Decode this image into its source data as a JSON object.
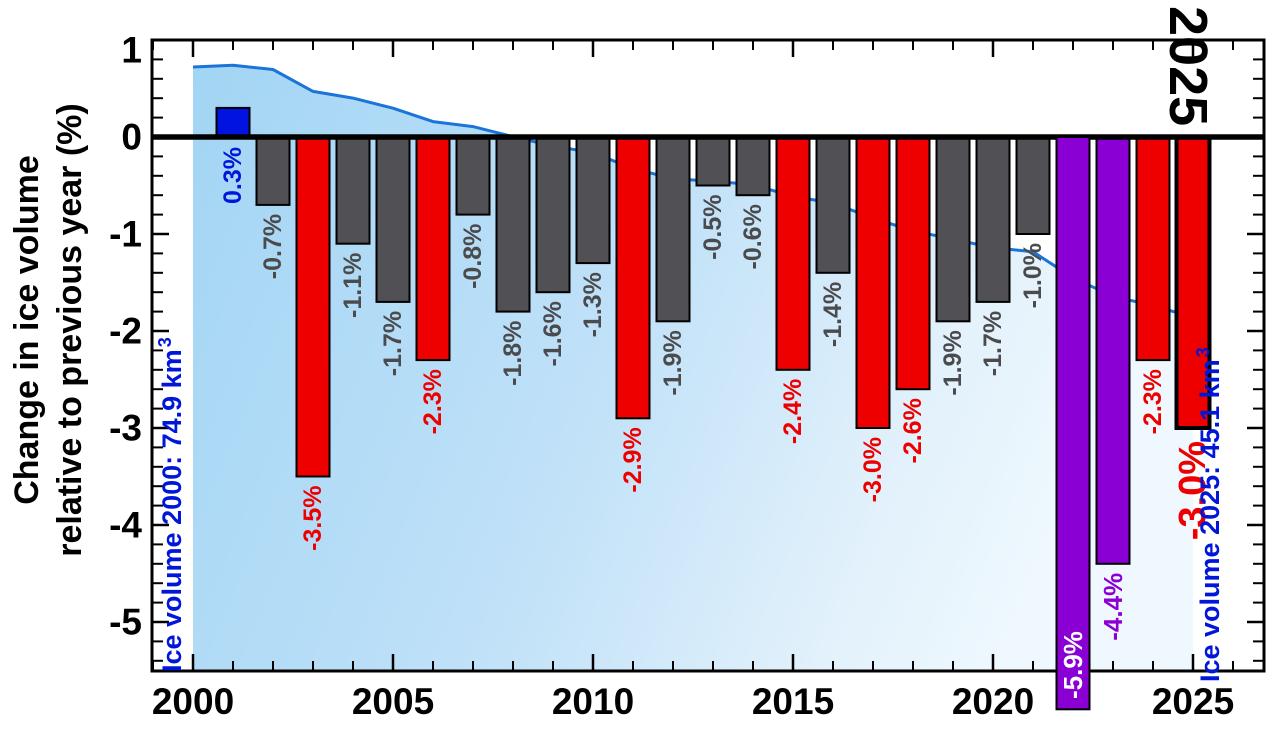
{
  "annotations": {
    "big_year": "2025",
    "ice_volume_2000": {
      "text": "Ice volume 2000: 74.9 km",
      "sup": "3"
    },
    "ice_volume_2025": {
      "text": "Ice volume 2025: 45.1 km",
      "sup": "3"
    }
  },
  "y_axis": {
    "title_line1": "Change in ice volume",
    "title_line2": "relative to previous year (%)",
    "major_ticks": [
      1,
      0,
      -1,
      -2,
      -3,
      -4,
      -5
    ],
    "minor_step": 0.2,
    "range_top": 1.0,
    "range_bottom": -5.5
  },
  "x_axis": {
    "major_ticks": [
      2000,
      2005,
      2010,
      2015,
      2020,
      2025
    ],
    "minor_step": 1,
    "range_start": 1999,
    "range_end": 2026.8
  },
  "colors": {
    "bar_blue": "#0013e0",
    "bar_gray": "#515155",
    "bar_red": "#ee0000",
    "bar_purple": "#8a00d4",
    "label_blue": "#0016d9",
    "label_gray": "#4b4b4e",
    "label_red": "#ee0000",
    "label_purple": "#8e00d2",
    "label_white": "#ffffff",
    "curve_blue": "#1b74d8",
    "area_fill_left": "#a2d5f4",
    "area_fill_mid": "#c0e1f8",
    "area_fill_right": "#eff8fe",
    "axis_black": "#000000"
  },
  "chart_data": {
    "type": "bar",
    "ylabel": "Change in ice volume relative to previous year (%)",
    "ylim": [
      -5.5,
      1
    ],
    "xlim": [
      1999,
      2026.8
    ],
    "grid": false,
    "legend": "none",
    "bars": [
      {
        "year": 2001,
        "value": 0.3,
        "label": "0.3%",
        "color": "blue"
      },
      {
        "year": 2002,
        "value": -0.7,
        "label": "-0.7%",
        "color": "gray"
      },
      {
        "year": 2003,
        "value": -3.5,
        "label": "-3.5%",
        "color": "red"
      },
      {
        "year": 2004,
        "value": -1.1,
        "label": "-1.1%",
        "color": "gray"
      },
      {
        "year": 2005,
        "value": -1.7,
        "label": "-1.7%",
        "color": "gray"
      },
      {
        "year": 2006,
        "value": -2.3,
        "label": "-2.3%",
        "color": "red"
      },
      {
        "year": 2007,
        "value": -0.8,
        "label": "-0.8%",
        "color": "gray"
      },
      {
        "year": 2008,
        "value": -1.8,
        "label": "-1.8%",
        "color": "gray"
      },
      {
        "year": 2009,
        "value": -1.6,
        "label": "-1.6%",
        "color": "gray"
      },
      {
        "year": 2010,
        "value": -1.3,
        "label": "-1.3%",
        "color": "gray"
      },
      {
        "year": 2011,
        "value": -2.9,
        "label": "-2.9%",
        "color": "red"
      },
      {
        "year": 2012,
        "value": -1.9,
        "label": "-1.9%",
        "color": "gray"
      },
      {
        "year": 2013,
        "value": -0.5,
        "label": "-0.5%",
        "color": "gray"
      },
      {
        "year": 2014,
        "value": -0.6,
        "label": "-0.6%",
        "color": "gray"
      },
      {
        "year": 2015,
        "value": -2.4,
        "label": "-2.4%",
        "color": "red"
      },
      {
        "year": 2016,
        "value": -1.4,
        "label": "-1.4%",
        "color": "gray"
      },
      {
        "year": 2017,
        "value": -3.0,
        "label": "-3.0%",
        "color": "red"
      },
      {
        "year": 2018,
        "value": -2.6,
        "label": "-2.6%",
        "color": "red"
      },
      {
        "year": 2019,
        "value": -1.9,
        "label": "-1.9%",
        "color": "gray"
      },
      {
        "year": 2020,
        "value": -1.7,
        "label": "-1.7%",
        "color": "gray"
      },
      {
        "year": 2021,
        "value": -1.0,
        "label": "-1.0%",
        "color": "gray"
      },
      {
        "year": 2022,
        "value": -5.9,
        "label": "-5.9%",
        "color": "purple",
        "label_style": "inside_white"
      },
      {
        "year": 2023,
        "value": -4.4,
        "label": "-4.4%",
        "color": "purple"
      },
      {
        "year": 2024,
        "value": -2.3,
        "label": "-2.3%",
        "color": "red"
      },
      {
        "year": 2025,
        "value": -3.0,
        "label": "-3.0%",
        "color": "red",
        "label_style": "large",
        "border": "thick"
      }
    ],
    "background_area": {
      "type": "area",
      "name": "ice-volume-km3",
      "x": [
        2000,
        2001,
        2002,
        2003,
        2004,
        2005,
        2006,
        2007,
        2008,
        2009,
        2010,
        2011,
        2012,
        2013,
        2014,
        2015,
        2016,
        2017,
        2018,
        2019,
        2020,
        2021,
        2022,
        2023,
        2024,
        2025
      ],
      "values": [
        74.9,
        75.1,
        74.6,
        72.0,
        71.2,
        70.0,
        68.4,
        67.8,
        66.6,
        65.5,
        64.7,
        62.8,
        61.6,
        61.3,
        60.9,
        59.5,
        58.7,
        56.9,
        55.4,
        54.4,
        53.4,
        52.9,
        49.8,
        47.6,
        46.5,
        45.1
      ]
    }
  }
}
